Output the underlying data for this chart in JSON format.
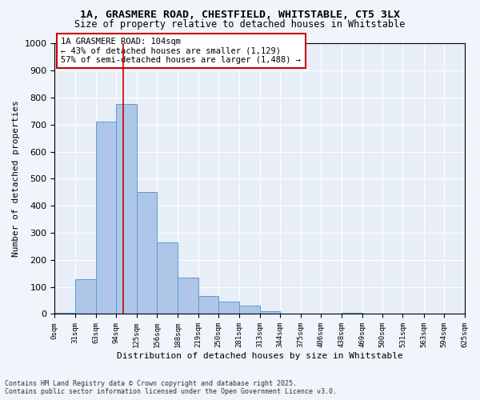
{
  "title1": "1A, GRASMERE ROAD, CHESTFIELD, WHITSTABLE, CT5 3LX",
  "title2": "Size of property relative to detached houses in Whitstable",
  "xlabel": "Distribution of detached houses by size in Whitstable",
  "ylabel": "Number of detached properties",
  "annotation_title": "1A GRASMERE ROAD: 104sqm",
  "annotation_line1": "← 43% of detached houses are smaller (1,129)",
  "annotation_line2": "57% of semi-detached houses are larger (1,488) →",
  "property_size": 104,
  "bar_color": "#aec6e8",
  "bar_edge_color": "#5b9bd5",
  "vline_color": "#cc0000",
  "annotation_box_color": "#cc0000",
  "background_color": "#e8eef7",
  "grid_color": "#ffffff",
  "bins": [
    0,
    31,
    63,
    94,
    125,
    156,
    188,
    219,
    250,
    281,
    313,
    344,
    375,
    406,
    438,
    469,
    500,
    531,
    563,
    594,
    625
  ],
  "bin_labels": [
    "0sqm",
    "31sqm",
    "63sqm",
    "94sqm",
    "125sqm",
    "156sqm",
    "188sqm",
    "219sqm",
    "250sqm",
    "281sqm",
    "313sqm",
    "344sqm",
    "375sqm",
    "406sqm",
    "438sqm",
    "469sqm",
    "500sqm",
    "531sqm",
    "563sqm",
    "594sqm",
    "625sqm"
  ],
  "counts": [
    3,
    130,
    710,
    775,
    450,
    265,
    135,
    65,
    45,
    30,
    10,
    0,
    0,
    0,
    5,
    0,
    0,
    0,
    0,
    0
  ],
  "ylim": [
    0,
    1000
  ],
  "yticks": [
    0,
    100,
    200,
    300,
    400,
    500,
    600,
    700,
    800,
    900,
    1000
  ],
  "footer1": "Contains HM Land Registry data © Crown copyright and database right 2025.",
  "footer2": "Contains public sector information licensed under the Open Government Licence v3.0."
}
